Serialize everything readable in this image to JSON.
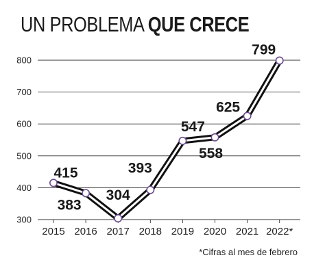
{
  "title": {
    "light": "UN PROBLEMA",
    "bold": "QUE CRECE"
  },
  "footnote": "*Cifras al mes de febrero",
  "chart_data": {
    "type": "line",
    "title": "UN PROBLEMA QUE CRECE",
    "xlabel": "",
    "ylabel": "",
    "categories": [
      "2015",
      "2016",
      "2017",
      "2018",
      "2019",
      "2020",
      "2021",
      "2022*"
    ],
    "values": [
      415,
      383,
      304,
      393,
      547,
      558,
      625,
      799
    ],
    "ylim": [
      300,
      800
    ],
    "yticks": [
      "300",
      "400",
      "500",
      "600",
      "700",
      "800"
    ],
    "grid": true,
    "legend": "none",
    "colors": {
      "line_outer": "#111111",
      "line_inner": "#ffffff",
      "marker_fill": "#ffffff",
      "marker_stroke": "#6a4a8c",
      "grid": "#333333"
    }
  }
}
